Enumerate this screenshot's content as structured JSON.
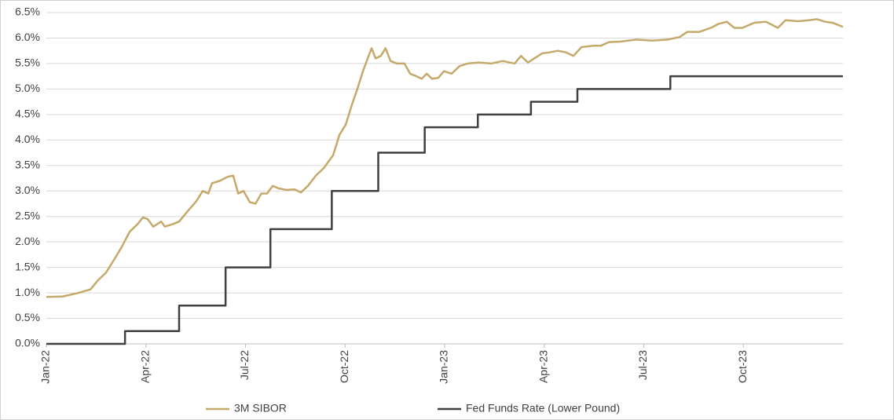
{
  "chart_data": {
    "type": "line",
    "legend": "bottom",
    "grid": true,
    "xlim": [
      0,
      24
    ],
    "xticks": [
      {
        "value": 0,
        "label": "Jan-22"
      },
      {
        "value": 3,
        "label": "Apr-22"
      },
      {
        "value": 6,
        "label": "Jul-22"
      },
      {
        "value": 9,
        "label": "Oct-22"
      },
      {
        "value": 12,
        "label": "Jan-23"
      },
      {
        "value": 15,
        "label": "Apr-23"
      },
      {
        "value": 18,
        "label": "Jul-23"
      },
      {
        "value": 21,
        "label": "Oct-23"
      }
    ],
    "ylim": [
      0,
      6.5
    ],
    "yticks": [
      {
        "value": 0,
        "label": "0.0%"
      },
      {
        "value": 0.5,
        "label": "0.5%"
      },
      {
        "value": 1,
        "label": "1.0%"
      },
      {
        "value": 1.5,
        "label": "1.5%"
      },
      {
        "value": 2,
        "label": "2.0%"
      },
      {
        "value": 2.5,
        "label": "2.5%"
      },
      {
        "value": 3,
        "label": "3.0%"
      },
      {
        "value": 3.5,
        "label": "3.5%"
      },
      {
        "value": 4,
        "label": "4.0%"
      },
      {
        "value": 4.5,
        "label": "4.5%"
      },
      {
        "value": 5,
        "label": "5.0%"
      },
      {
        "value": 5.5,
        "label": "5.5%"
      },
      {
        "value": 6,
        "label": "6.0%"
      },
      {
        "value": 6.5,
        "label": "6.5%"
      }
    ],
    "series": [
      {
        "name": "3M SIBOR",
        "color": "#c4a96b",
        "x": [
          0,
          0.5,
          0.97,
          1.33,
          1.56,
          1.8,
          2.04,
          2.27,
          2.51,
          2.75,
          2.91,
          3.05,
          3.22,
          3.46,
          3.57,
          3.81,
          4.0,
          4.28,
          4.52,
          4.71,
          4.88,
          4.99,
          5.23,
          5.47,
          5.63,
          5.78,
          5.94,
          6.13,
          6.3,
          6.48,
          6.65,
          6.82,
          7.0,
          7.24,
          7.48,
          7.67,
          7.88,
          8.12,
          8.36,
          8.64,
          8.83,
          9.02,
          9.21,
          9.37,
          9.54,
          9.68,
          9.8,
          9.92,
          10.08,
          10.22,
          10.37,
          10.56,
          10.79,
          10.96,
          11.15,
          11.31,
          11.46,
          11.62,
          11.81,
          11.98,
          12.21,
          12.45,
          12.69,
          13.04,
          13.4,
          13.75,
          14.11,
          14.3,
          14.51,
          14.7,
          14.94,
          15.17,
          15.41,
          15.65,
          15.88,
          16.12,
          16.47,
          16.71,
          16.95,
          17.3,
          17.78,
          18.25,
          18.72,
          19.08,
          19.31,
          19.67,
          20.02,
          20.26,
          20.5,
          20.73,
          20.97,
          21.33,
          21.68,
          22.04,
          22.27,
          22.63,
          22.98,
          23.22,
          23.46,
          23.69,
          24
        ],
        "values": [
          0.92,
          0.93,
          1.0,
          1.07,
          1.25,
          1.4,
          1.65,
          1.9,
          2.2,
          2.35,
          2.48,
          2.45,
          2.3,
          2.4,
          2.3,
          2.35,
          2.4,
          2.62,
          2.8,
          3.0,
          2.95,
          3.15,
          3.2,
          3.28,
          3.3,
          2.95,
          3.0,
          2.78,
          2.75,
          2.95,
          2.95,
          3.1,
          3.05,
          3.02,
          3.03,
          2.97,
          3.1,
          3.3,
          3.45,
          3.7,
          4.1,
          4.3,
          4.7,
          5.0,
          5.35,
          5.6,
          5.8,
          5.6,
          5.65,
          5.8,
          5.55,
          5.5,
          5.5,
          5.3,
          5.25,
          5.2,
          5.3,
          5.2,
          5.22,
          5.35,
          5.3,
          5.45,
          5.5,
          5.52,
          5.5,
          5.55,
          5.5,
          5.65,
          5.52,
          5.6,
          5.7,
          5.72,
          5.75,
          5.72,
          5.65,
          5.82,
          5.85,
          5.85,
          5.92,
          5.93,
          5.97,
          5.95,
          5.97,
          6.02,
          6.12,
          6.12,
          6.2,
          6.28,
          6.32,
          6.2,
          6.2,
          6.3,
          6.32,
          6.2,
          6.35,
          6.33,
          6.35,
          6.37,
          6.32,
          6.3,
          6.22
        ]
      },
      {
        "name": "Fed Funds Rate (Lower Pound)",
        "color": "#404040",
        "x": [
          0,
          2.37,
          2.37,
          4,
          4,
          5.4,
          5.4,
          6.75,
          6.75,
          8.6,
          8.6,
          10,
          10,
          11.4,
          11.4,
          13,
          13,
          14.6,
          14.6,
          16,
          16,
          18.8,
          18.8,
          24
        ],
        "values": [
          0,
          0,
          0.25,
          0.25,
          0.75,
          0.75,
          1.5,
          1.5,
          2.25,
          2.25,
          3,
          3,
          3.75,
          3.75,
          4.25,
          4.25,
          4.5,
          4.5,
          4.75,
          4.75,
          5,
          5,
          5.25,
          5.25
        ]
      }
    ]
  }
}
